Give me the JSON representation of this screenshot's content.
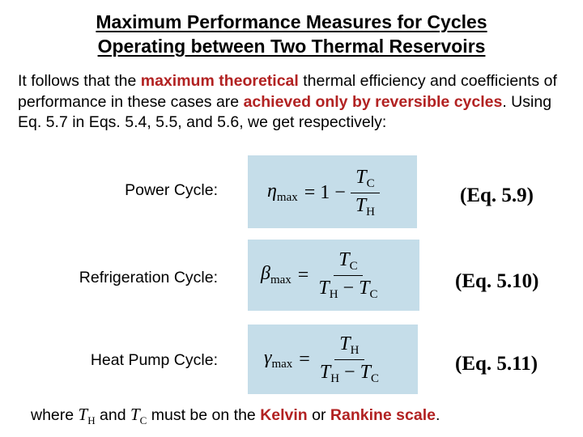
{
  "title": {
    "line1": "Maximum Performance Measures for Cycles",
    "line2": "Operating between Two Thermal Reservoirs"
  },
  "intro": {
    "t1": "It follows that the ",
    "h1": "maximum theoretical",
    "t2": " thermal efficiency and coefficients of performance in these cases are ",
    "h2": "achieved only by reversible cycles",
    "t3": ". Using Eq. 5.7 in Eqs. 5.4, 5.5, and 5.6, we get respectively:"
  },
  "rows": [
    {
      "label": "Power Cycle:",
      "symbol": "η",
      "symbol_sub": "max",
      "lhs_prefix": "= 1 −",
      "num": "T",
      "num_sub": "C",
      "den_a": "T",
      "den_a_sub": "H",
      "eq": "(Eq. 5.9)"
    },
    {
      "label": "Refrigeration Cycle:",
      "symbol": "β",
      "symbol_sub": "max",
      "eq_sign": "=",
      "num": "T",
      "num_sub": "C",
      "den_a": "T",
      "den_a_sub": "H",
      "den_minus": "−",
      "den_b": "T",
      "den_b_sub": "C",
      "eq": "(Eq. 5.10)"
    },
    {
      "label": "Heat Pump Cycle:",
      "symbol": "γ",
      "symbol_sub": "max",
      "eq_sign": "=",
      "num": "T",
      "num_sub": "H",
      "den_a": "T",
      "den_a_sub": "H",
      "den_minus": "−",
      "den_b": "T",
      "den_b_sub": "C",
      "eq": "(Eq. 5.11)"
    }
  ],
  "footer": {
    "t1": "where ",
    "th": "T",
    "th_sub": "H",
    "t2": " and ",
    "tc": "T",
    "tc_sub": "C",
    "t3": " must be on the ",
    "h1": "Kelvin",
    "t4": " or ",
    "h2": "Rankine scale",
    "t5": "."
  },
  "colors": {
    "highlight": "#b22222",
    "formula_box": "#c5dde9"
  }
}
